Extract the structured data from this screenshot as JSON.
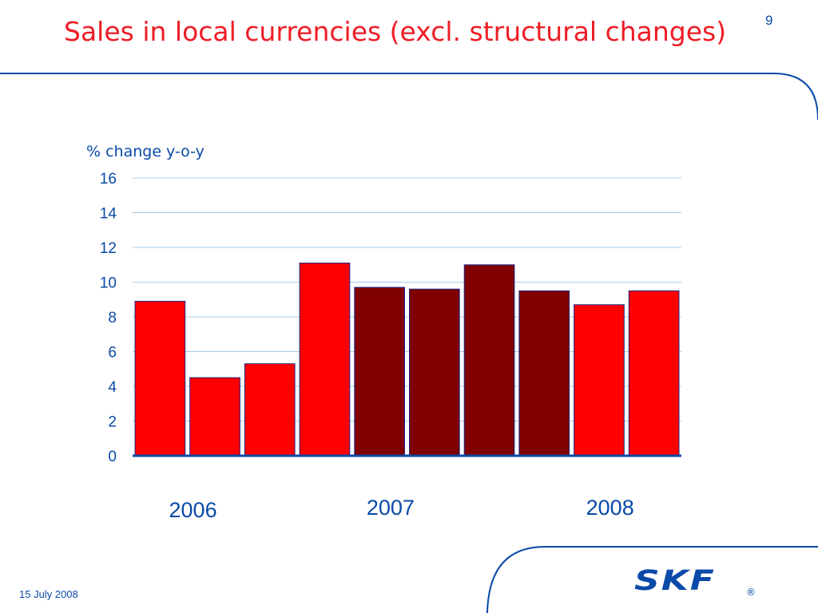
{
  "slide": {
    "title": "Sales in local currencies (excl. structural changes)",
    "page_number": "9",
    "date": "15 July 2008",
    "logo_text": "SKF",
    "logo_mark": "®"
  },
  "chart_data": {
    "type": "bar",
    "ylabel": "% change y-o-y",
    "ylim": [
      0,
      16
    ],
    "yticks": [
      0,
      2,
      4,
      6,
      8,
      10,
      12,
      14,
      16
    ],
    "year_labels": [
      "2006",
      "2007",
      "2008"
    ],
    "values": [
      8.9,
      4.5,
      5.3,
      11.1,
      9.7,
      9.6,
      11.0,
      9.5,
      8.7,
      9.5
    ],
    "bar_colors": [
      "#ff0000",
      "#ff0000",
      "#ff0000",
      "#ff0000",
      "#800000",
      "#800000",
      "#800000",
      "#800000",
      "#ff0000",
      "#ff0000"
    ],
    "grid": true
  },
  "colors": {
    "title_red": "#ee1c25",
    "brand_blue": "#0a4aa8",
    "grid": "#a9cce8",
    "bar_outline": "#1a2a8a"
  }
}
